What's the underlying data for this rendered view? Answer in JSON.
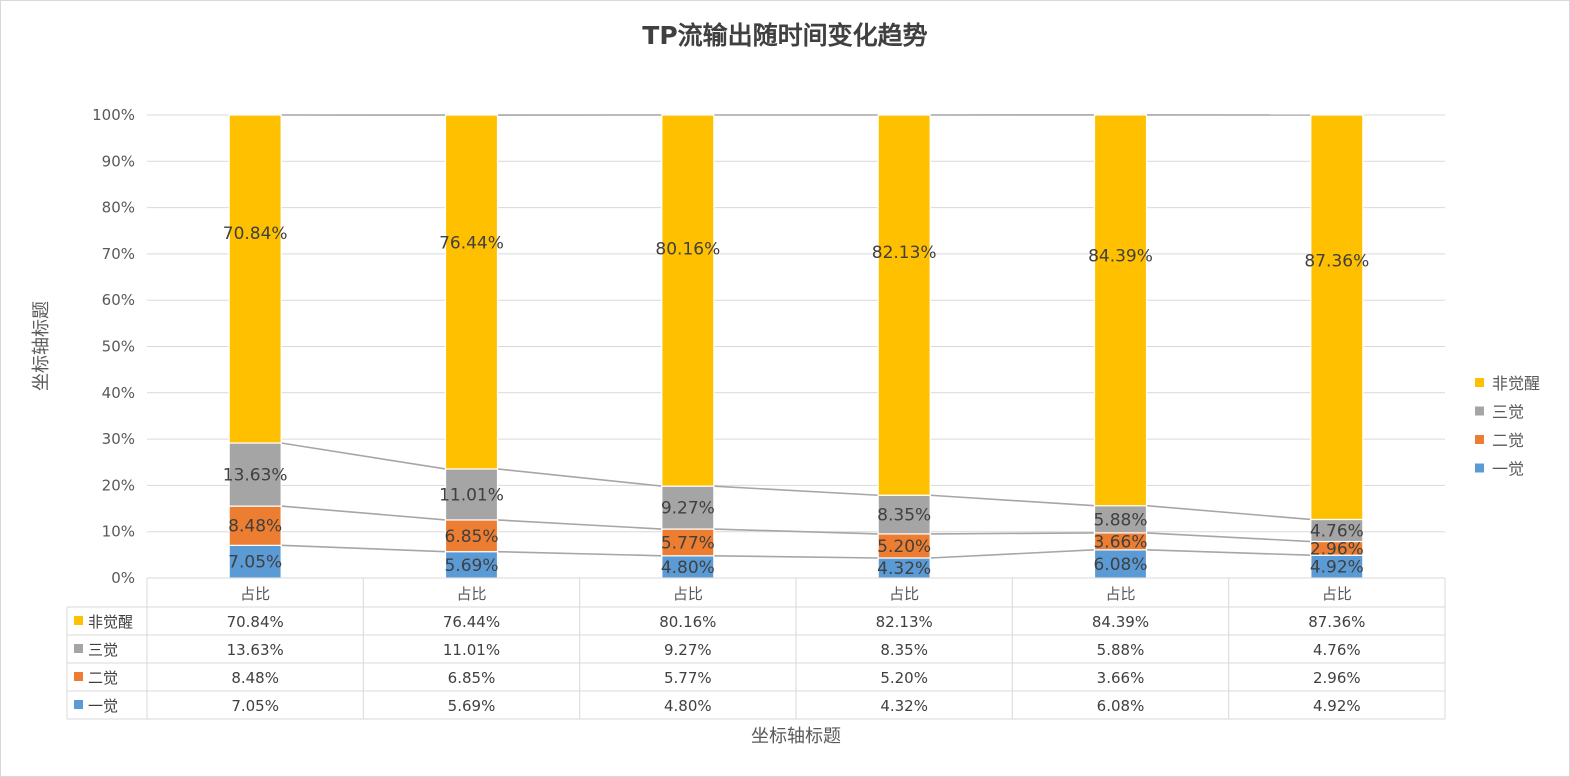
{
  "chart_data": {
    "type": "bar",
    "stacked": true,
    "percent_stacked": true,
    "title": "TP流输出随时间变化趋势",
    "xlabel": "坐标轴标题",
    "ylabel": "坐标轴标题",
    "ylim": [
      0,
      100
    ],
    "yticks": [
      "0%",
      "10%",
      "20%",
      "30%",
      "40%",
      "50%",
      "60%",
      "70%",
      "80%",
      "90%",
      "100%"
    ],
    "categories": [
      "占比",
      "占比",
      "占比",
      "占比",
      "占比",
      "占比"
    ],
    "series": [
      {
        "name": "一觉",
        "color": "#5B9BD5",
        "values": [
          7.05,
          5.69,
          4.8,
          4.32,
          6.08,
          4.92
        ],
        "labels": [
          "7.05%",
          "5.69%",
          "4.80%",
          "4.32%",
          "6.08%",
          "4.92%"
        ]
      },
      {
        "name": "二觉",
        "color": "#ED7D31",
        "values": [
          8.48,
          6.85,
          5.77,
          5.2,
          3.66,
          2.96
        ],
        "labels": [
          "8.48%",
          "6.85%",
          "5.77%",
          "5.20%",
          "3.66%",
          "2.96%"
        ]
      },
      {
        "name": "三觉",
        "color": "#A5A5A5",
        "values": [
          13.63,
          11.01,
          9.27,
          8.35,
          5.88,
          4.76
        ],
        "labels": [
          "13.63%",
          "11.01%",
          "9.27%",
          "8.35%",
          "5.88%",
          "4.76%"
        ]
      },
      {
        "name": "非觉醒",
        "color": "#FFC000",
        "values": [
          70.84,
          76.44,
          80.16,
          82.13,
          84.39,
          87.36
        ],
        "labels": [
          "70.84%",
          "76.44%",
          "80.16%",
          "82.13%",
          "84.39%",
          "87.36%"
        ]
      }
    ],
    "legend_position": "right",
    "grid": true,
    "data_table": true,
    "series_lines": true
  }
}
